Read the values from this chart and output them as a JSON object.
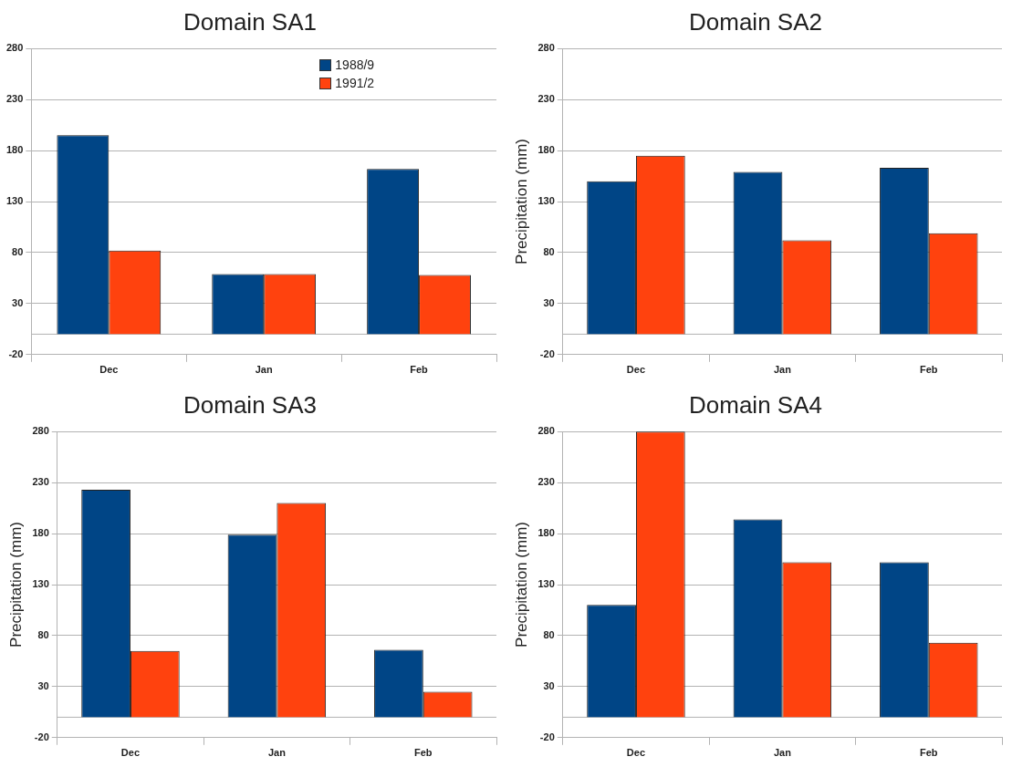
{
  "chart_data": [
    {
      "type": "bar",
      "title": "Domain SA1",
      "categories": [
        "Dec",
        "Jan",
        "Feb"
      ],
      "series": [
        {
          "name": "1988/9",
          "color": "#004586",
          "values": [
            195,
            59,
            162
          ]
        },
        {
          "name": "1991/2",
          "color": "#ff420e",
          "values": [
            82,
            59,
            58
          ]
        }
      ],
      "ylim": [
        -20,
        280
      ],
      "yticks": [
        -20,
        30,
        80,
        130,
        180,
        230,
        280
      ],
      "grid": "y",
      "legend": "top right",
      "ref_lines": [
        {
          "axis": "y",
          "value": 0,
          "color": "#b3b3b3"
        }
      ]
    },
    {
      "type": "bar",
      "title": "Domain SA2",
      "ylabel": "Precipitation (mm)",
      "categories": [
        "Dec",
        "Jan",
        "Feb"
      ],
      "series": [
        {
          "color": "#004586",
          "values": [
            150,
            159,
            163
          ]
        },
        {
          "color": "#ff420e",
          "values": [
            175,
            92,
            99
          ]
        }
      ],
      "ylim": [
        -20,
        280
      ],
      "yticks": [
        -20,
        30,
        80,
        130,
        180,
        230,
        280
      ],
      "grid": "y",
      "ref_lines": [
        {
          "axis": "y",
          "value": 0,
          "color": "#b3b3b3"
        }
      ]
    },
    {
      "type": "bar",
      "title": "Domain SA3",
      "ylabel": "Precipitation (mm)",
      "categories": [
        "Dec",
        "Jan",
        "Feb"
      ],
      "series": [
        {
          "color": "#004586",
          "values": [
            223,
            179,
            66
          ]
        },
        {
          "color": "#ff420e",
          "values": [
            65,
            210,
            25
          ]
        }
      ],
      "ylim": [
        -20,
        280
      ],
      "yticks": [
        -20,
        30,
        80,
        130,
        180,
        230,
        280
      ],
      "grid": "y",
      "ref_lines": [
        {
          "axis": "y",
          "value": 0,
          "color": "#b3b3b3"
        }
      ]
    },
    {
      "type": "bar",
      "title": "Domain SA4",
      "ylabel": "Precipitation (mm)",
      "categories": [
        "Dec",
        "Jan",
        "Feb"
      ],
      "series": [
        {
          "color": "#004586",
          "values": [
            110,
            194,
            152
          ]
        },
        {
          "color": "#ff420e",
          "values": [
            280,
            152,
            73
          ]
        }
      ],
      "ylim": [
        -20,
        280
      ],
      "yticks": [
        -20,
        30,
        80,
        130,
        180,
        230,
        280
      ],
      "grid": "y",
      "ref_lines": [
        {
          "axis": "y",
          "value": 0,
          "color": "#b3b3b3"
        }
      ]
    }
  ]
}
